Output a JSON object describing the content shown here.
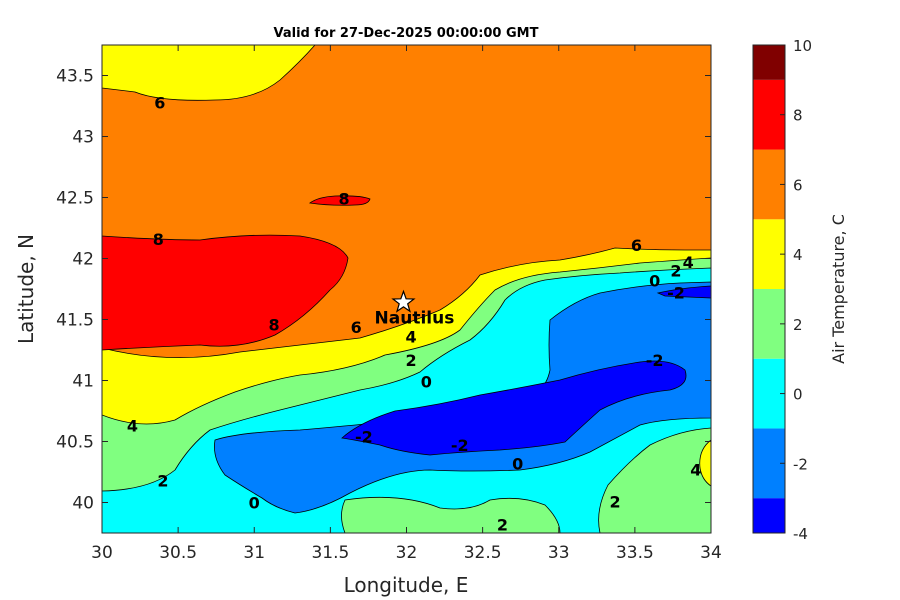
{
  "chart_data": {
    "type": "contour",
    "title": "Valid for 27-Dec-2025 00:00:00 GMT",
    "xlabel": "Longitude, E",
    "ylabel": "Latitude, N",
    "xlim": [
      30,
      34
    ],
    "ylim": [
      39.75,
      43.75
    ],
    "xticks": [
      30,
      30.5,
      31,
      31.5,
      32,
      32.5,
      33,
      33.5,
      34
    ],
    "xtick_labels": [
      "30",
      "30.5",
      "31",
      "31.5",
      "32",
      "32.5",
      "33",
      "33.5",
      "34"
    ],
    "yticks": [
      40,
      40.5,
      41,
      41.5,
      42,
      42.5,
      43,
      43.5
    ],
    "ytick_labels": [
      "40",
      "40.5",
      "41",
      "41.5",
      "42",
      "42.5",
      "43",
      "43.5"
    ],
    "colorbar": {
      "label": "Air Temperature, C",
      "range": [
        -4,
        10
      ],
      "ticks": [
        -4,
        -2,
        0,
        2,
        4,
        6,
        8,
        10
      ],
      "tick_labels": [
        "-4",
        "-2",
        "0",
        "2",
        "4",
        "6",
        "8",
        "10"
      ],
      "bands": [
        {
          "from": -4,
          "to": -3,
          "color": "#0000ff"
        },
        {
          "from": -3,
          "to": -1,
          "color": "#0080ff"
        },
        {
          "from": -1,
          "to": 1,
          "color": "#00ffff"
        },
        {
          "from": 1,
          "to": 3,
          "color": "#80ff80"
        },
        {
          "from": 3,
          "to": 5,
          "color": "#ffff00"
        },
        {
          "from": 5,
          "to": 7,
          "color": "#ff8000"
        },
        {
          "from": 7,
          "to": 9,
          "color": "#ff0000"
        },
        {
          "from": 9,
          "to": 10,
          "color": "#800000"
        }
      ]
    },
    "station": {
      "name": "Nautilus",
      "lon": 31.98,
      "lat": 41.64
    },
    "contour_labels": [
      {
        "text": "6",
        "lon": 30.38,
        "lat": 43.28
      },
      {
        "text": "8",
        "lon": 31.59,
        "lat": 42.49
      },
      {
        "text": "8",
        "lon": 30.37,
        "lat": 42.16
      },
      {
        "text": "8",
        "lon": 31.13,
        "lat": 41.46
      },
      {
        "text": "6",
        "lon": 31.67,
        "lat": 41.44
      },
      {
        "text": "4",
        "lon": 32.03,
        "lat": 41.36
      },
      {
        "text": "2",
        "lon": 32.03,
        "lat": 41.17
      },
      {
        "text": "0",
        "lon": 32.13,
        "lat": 40.99
      },
      {
        "text": "-2",
        "lon": 31.72,
        "lat": 40.54
      },
      {
        "text": "-2",
        "lon": 32.35,
        "lat": 40.47
      },
      {
        "text": "-2",
        "lon": 33.63,
        "lat": 41.17
      },
      {
        "text": "0",
        "lon": 32.73,
        "lat": 40.32
      },
      {
        "text": "6",
        "lon": 33.51,
        "lat": 42.11
      },
      {
        "text": "0",
        "lon": 33.63,
        "lat": 41.82
      },
      {
        "text": "2",
        "lon": 33.77,
        "lat": 41.9
      },
      {
        "text": "4",
        "lon": 33.85,
        "lat": 41.97
      },
      {
        "text": "-2",
        "lon": 33.77,
        "lat": 41.72
      },
      {
        "text": "4",
        "lon": 30.2,
        "lat": 40.63
      },
      {
        "text": "2",
        "lon": 30.4,
        "lat": 40.18
      },
      {
        "text": "0",
        "lon": 31.0,
        "lat": 40.0
      },
      {
        "text": "2",
        "lon": 32.63,
        "lat": 39.82
      },
      {
        "text": "2",
        "lon": 33.37,
        "lat": 40.01
      },
      {
        "text": "4",
        "lon": 33.9,
        "lat": 40.27
      }
    ]
  }
}
